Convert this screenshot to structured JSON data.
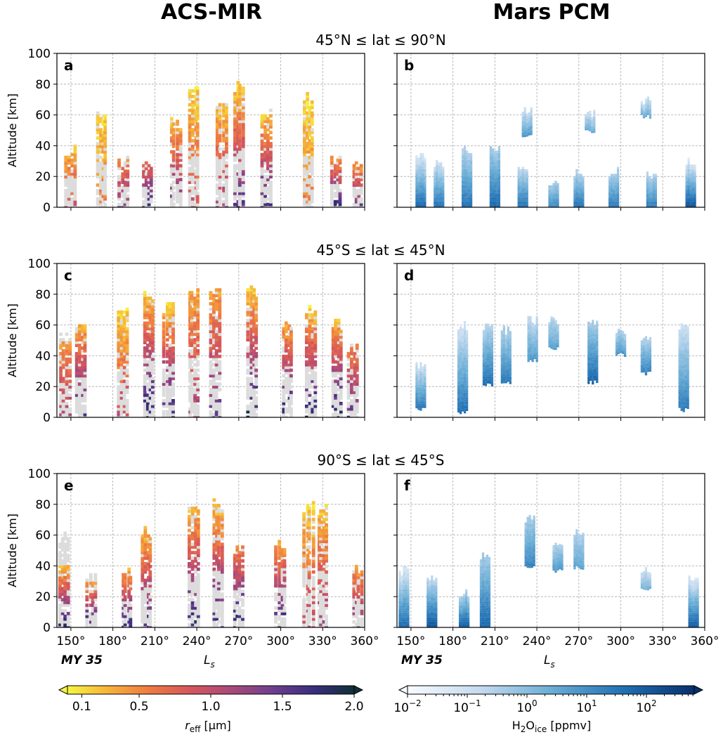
{
  "figure": {
    "left_title": "ACS-MIR",
    "right_title": "Mars PCM",
    "year_label": "MY 35",
    "xlabel": "L",
    "xlabel_sub": "s"
  },
  "rows": [
    {
      "title": "45°N ≤ lat ≤ 90°N",
      "left_label": "a",
      "right_label": "b"
    },
    {
      "title": "45°S ≤ lat ≤ 45°N",
      "left_label": "c",
      "right_label": "d"
    },
    {
      "title": "90°S ≤ lat ≤ 45°S",
      "left_label": "e",
      "right_label": "f"
    }
  ],
  "colorbars": {
    "left": {
      "label": "r",
      "label_sub": "eff",
      "label_unit": " [μm]",
      "ticks": [
        "0.1",
        "0.5",
        "1.0",
        "1.5",
        "2.0"
      ],
      "range": [
        0,
        2
      ],
      "colors": [
        "#f5f541",
        "#f6b23a",
        "#ee7a42",
        "#d5565d",
        "#a94a7a",
        "#6f3f8e",
        "#3b2d7e",
        "#102f38"
      ]
    },
    "right": {
      "label": "H",
      "label_sub1": "2",
      "label_mid": "O",
      "label_sub2": "ice",
      "label_unit": " [ppmv]",
      "tick_bases": [
        "10",
        "10",
        "10",
        "10",
        "10"
      ],
      "tick_exps": [
        "−2",
        "−1",
        "0",
        "1",
        "2"
      ],
      "range_log10": [
        -2,
        2.8
      ],
      "colors": [
        "#f7fbff",
        "#c6dbef",
        "#6baed6",
        "#2171b5",
        "#08306b"
      ]
    }
  },
  "chart_data": [
    {
      "type": "heatmap",
      "panel": "a",
      "title": "45°N ≤ lat ≤ 90°N",
      "ylabel": "Altitude [km]",
      "xlim": [
        140,
        360
      ],
      "ylim": [
        0,
        100
      ],
      "xticks": [
        "150°",
        "180°",
        "210°",
        "240°",
        "270°",
        "300°",
        "330°",
        "360°"
      ],
      "yticks": [
        "0",
        "20",
        "40",
        "60",
        "80",
        "100"
      ],
      "grid": true,
      "color_var": "r_eff [μm]",
      "columns": [
        {
          "ls": 150,
          "bottom": 0,
          "top": 40,
          "color_top": 42,
          "reff_top": 0.2,
          "reff_bottom": 0.9
        },
        {
          "ls": 172,
          "bottom": 0,
          "top": 66,
          "color_top": 66,
          "reff_top": 0.1,
          "reff_bottom": 0.6
        },
        {
          "ls": 188,
          "bottom": 0,
          "top": 36,
          "color_top": 32,
          "reff_top": 0.4,
          "reff_bottom": 1.4
        },
        {
          "ls": 205,
          "bottom": 0,
          "top": 34,
          "color_top": 32,
          "reff_top": 0.5,
          "reff_bottom": 1.9
        },
        {
          "ls": 225,
          "bottom": 0,
          "top": 58,
          "color_top": 58,
          "reff_top": 0.2,
          "reff_bottom": 1.5
        },
        {
          "ls": 238,
          "bottom": 0,
          "top": 80,
          "color_top": 80,
          "reff_top": 0.1,
          "reff_bottom": 0.9
        },
        {
          "ls": 258,
          "bottom": 0,
          "top": 74,
          "color_top": 74,
          "reff_top": 0.1,
          "reff_bottom": 1.2
        },
        {
          "ls": 270,
          "bottom": 0,
          "top": 82,
          "color_top": 82,
          "reff_top": 0.1,
          "reff_bottom": 1.6
        },
        {
          "ls": 290,
          "bottom": 0,
          "top": 64,
          "color_top": 60,
          "reff_top": 0.2,
          "reff_bottom": 1.7
        },
        {
          "ls": 320,
          "bottom": 0,
          "top": 74,
          "color_top": 74,
          "reff_top": 0.1,
          "reff_bottom": 0.6
        },
        {
          "ls": 340,
          "bottom": 0,
          "top": 34,
          "color_top": 34,
          "reff_top": 0.3,
          "reff_bottom": 1.8
        },
        {
          "ls": 355,
          "bottom": 0,
          "top": 32,
          "color_top": 32,
          "reff_top": 0.2,
          "reff_bottom": 1.5
        }
      ]
    },
    {
      "type": "heatmap",
      "panel": "b",
      "title": "45°N ≤ lat ≤ 90°N",
      "xlim": [
        140,
        360
      ],
      "ylim": [
        0,
        100
      ],
      "xticks": [
        "150°",
        "180°",
        "210°",
        "240°",
        "270°",
        "300°",
        "330°",
        "360°"
      ],
      "grid": true,
      "color_var": "H2O_ice [ppmv]",
      "columns": [
        {
          "ls": 157,
          "bottom": 0,
          "top": 36,
          "log_top": -1.2,
          "log_bottom": 1.8
        },
        {
          "ls": 170,
          "bottom": 0,
          "top": 32,
          "log_top": -1.0,
          "log_bottom": 1.6
        },
        {
          "ls": 190,
          "bottom": 0,
          "top": 40,
          "log_top": -0.6,
          "log_bottom": 1.6
        },
        {
          "ls": 210,
          "bottom": 0,
          "top": 40,
          "log_top": -0.4,
          "log_bottom": 1.8
        },
        {
          "ls": 230,
          "bottom": 0,
          "top": 30,
          "log_top": -0.8,
          "log_bottom": 1.6
        },
        {
          "ls": 233,
          "bottom": 46,
          "top": 66,
          "log_top": -1.0,
          "log_bottom": 0.8
        },
        {
          "ls": 252,
          "bottom": 0,
          "top": 18,
          "log_top": -0.4,
          "log_bottom": 1.2
        },
        {
          "ls": 270,
          "bottom": 0,
          "top": 26,
          "log_top": -0.6,
          "log_bottom": 1.6
        },
        {
          "ls": 278,
          "bottom": 48,
          "top": 64,
          "log_top": -1.0,
          "log_bottom": 0.4
        },
        {
          "ls": 295,
          "bottom": 0,
          "top": 26,
          "log_top": -0.5,
          "log_bottom": 1.4
        },
        {
          "ls": 318,
          "bottom": 58,
          "top": 72,
          "log_top": -1.0,
          "log_bottom": 0.4
        },
        {
          "ls": 322,
          "bottom": 0,
          "top": 24,
          "log_top": -0.6,
          "log_bottom": 1.4
        },
        {
          "ls": 350,
          "bottom": 0,
          "top": 32,
          "log_top": -1.2,
          "log_bottom": 2.2
        }
      ]
    },
    {
      "type": "heatmap",
      "panel": "c",
      "title": "45°S ≤ lat ≤ 45°N",
      "ylabel": "Altitude [km]",
      "xlim": [
        140,
        360
      ],
      "ylim": [
        0,
        100
      ],
      "xticks": [
        "150°",
        "180°",
        "210°",
        "240°",
        "270°",
        "300°",
        "330°",
        "360°"
      ],
      "yticks": [
        "0",
        "20",
        "40",
        "60",
        "80",
        "100"
      ],
      "grid": true,
      "color_var": "r_eff [μm]",
      "columns": [
        {
          "ls": 146,
          "bottom": 0,
          "top": 56,
          "color_top": 50,
          "reff_top": 0.4,
          "reff_bottom": 1.2
        },
        {
          "ls": 157,
          "bottom": 0,
          "top": 64,
          "color_top": 60,
          "reff_top": 0.3,
          "reff_bottom": 1.8
        },
        {
          "ls": 187,
          "bottom": 0,
          "top": 72,
          "color_top": 72,
          "reff_top": 0.1,
          "reff_bottom": 1.0
        },
        {
          "ls": 206,
          "bottom": 0,
          "top": 84,
          "color_top": 84,
          "reff_top": 0.1,
          "reff_bottom": 1.9
        },
        {
          "ls": 220,
          "bottom": 0,
          "top": 76,
          "color_top": 76,
          "reff_top": 0.1,
          "reff_bottom": 1.8
        },
        {
          "ls": 238,
          "bottom": 0,
          "top": 86,
          "color_top": 86,
          "reff_top": 0.3,
          "reff_bottom": 1.2
        },
        {
          "ls": 253,
          "bottom": 0,
          "top": 86,
          "color_top": 86,
          "reff_top": 0.3,
          "reff_bottom": 1.5
        },
        {
          "ls": 280,
          "bottom": 0,
          "top": 86,
          "color_top": 86,
          "reff_top": 0.1,
          "reff_bottom": 1.9
        },
        {
          "ls": 305,
          "bottom": 0,
          "top": 66,
          "color_top": 66,
          "reff_top": 0.2,
          "reff_bottom": 1.9
        },
        {
          "ls": 322,
          "bottom": 0,
          "top": 74,
          "color_top": 74,
          "reff_top": 0.1,
          "reff_bottom": 1.9
        },
        {
          "ls": 340,
          "bottom": 0,
          "top": 66,
          "color_top": 66,
          "reff_top": 0.2,
          "reff_bottom": 1.9
        },
        {
          "ls": 352,
          "bottom": 0,
          "top": 50,
          "color_top": 50,
          "reff_top": 0.4,
          "reff_bottom": 1.6
        }
      ]
    },
    {
      "type": "heatmap",
      "panel": "d",
      "title": "45°S ≤ lat ≤ 45°N",
      "xlim": [
        140,
        360
      ],
      "ylim": [
        0,
        100
      ],
      "xticks": [
        "150°",
        "180°",
        "210°",
        "240°",
        "270°",
        "300°",
        "330°",
        "360°"
      ],
      "grid": true,
      "color_var": "H2O_ice [ppmv]",
      "columns": [
        {
          "ls": 157,
          "bottom": 4,
          "top": 36,
          "log_top": -1.0,
          "log_bottom": 1.4
        },
        {
          "ls": 187,
          "bottom": 2,
          "top": 62,
          "log_top": -1.0,
          "log_bottom": 1.6
        },
        {
          "ls": 205,
          "bottom": 20,
          "top": 62,
          "log_top": -0.6,
          "log_bottom": 1.6
        },
        {
          "ls": 218,
          "bottom": 22,
          "top": 60,
          "log_top": -0.5,
          "log_bottom": 1.4
        },
        {
          "ls": 237,
          "bottom": 36,
          "top": 66,
          "log_top": -0.8,
          "log_bottom": 0.8
        },
        {
          "ls": 252,
          "bottom": 44,
          "top": 66,
          "log_top": -0.6,
          "log_bottom": 0.6
        },
        {
          "ls": 280,
          "bottom": 22,
          "top": 66,
          "log_top": -0.4,
          "log_bottom": 1.8
        },
        {
          "ls": 300,
          "bottom": 40,
          "top": 58,
          "log_top": -0.6,
          "log_bottom": 0.8
        },
        {
          "ls": 318,
          "bottom": 28,
          "top": 54,
          "log_top": -0.6,
          "log_bottom": 1.2
        },
        {
          "ls": 345,
          "bottom": 4,
          "top": 62,
          "log_top": -1.0,
          "log_bottom": 1.4
        }
      ]
    },
    {
      "type": "heatmap",
      "panel": "e",
      "title": "90°S ≤ lat ≤ 45°S",
      "ylabel": "Altitude [km]",
      "xlim": [
        140,
        360
      ],
      "ylim": [
        0,
        100
      ],
      "xticks": [
        "150°",
        "180°",
        "210°",
        "240°",
        "270°",
        "300°",
        "330°",
        "360°"
      ],
      "yticks": [
        "0",
        "20",
        "40",
        "60",
        "80",
        "100"
      ],
      "grid": true,
      "color_var": "r_eff [μm]",
      "columns": [
        {
          "ls": 145,
          "bottom": 0,
          "top": 62,
          "color_top": 40,
          "reff_top": 0.2,
          "reff_bottom": 1.9
        },
        {
          "ls": 165,
          "bottom": 0,
          "top": 36,
          "color_top": 30,
          "reff_top": 0.3,
          "reff_bottom": 1.9
        },
        {
          "ls": 190,
          "bottom": 0,
          "top": 42,
          "color_top": 38,
          "reff_top": 0.3,
          "reff_bottom": 1.8
        },
        {
          "ls": 204,
          "bottom": 0,
          "top": 68,
          "color_top": 66,
          "reff_top": 0.2,
          "reff_bottom": 1.6
        },
        {
          "ls": 238,
          "bottom": 0,
          "top": 80,
          "color_top": 80,
          "reff_top": 0.2,
          "reff_bottom": 1.8
        },
        {
          "ls": 255,
          "bottom": 0,
          "top": 84,
          "color_top": 84,
          "reff_top": 0.1,
          "reff_bottom": 1.8
        },
        {
          "ls": 270,
          "bottom": 0,
          "top": 54,
          "color_top": 54,
          "reff_top": 0.5,
          "reff_bottom": 1.9
        },
        {
          "ls": 300,
          "bottom": 0,
          "top": 58,
          "color_top": 58,
          "reff_top": 0.3,
          "reff_bottom": 1.8
        },
        {
          "ls": 320,
          "bottom": 0,
          "top": 84,
          "color_top": 84,
          "reff_top": 0.1,
          "reff_bottom": 1.0
        },
        {
          "ls": 330,
          "bottom": 0,
          "top": 80,
          "color_top": 80,
          "reff_top": 0.2,
          "reff_bottom": 1.2
        },
        {
          "ls": 355,
          "bottom": 0,
          "top": 40,
          "color_top": 40,
          "reff_top": 0.4,
          "reff_bottom": 1.4
        }
      ]
    },
    {
      "type": "heatmap",
      "panel": "f",
      "title": "90°S ≤ lat ≤ 45°S",
      "xlim": [
        140,
        360
      ],
      "ylim": [
        0,
        100
      ],
      "xticks": [
        "150°",
        "180°",
        "210°",
        "240°",
        "270°",
        "300°",
        "330°",
        "360°"
      ],
      "grid": true,
      "color_var": "H2O_ice [ppmv]",
      "columns": [
        {
          "ls": 145,
          "bottom": 0,
          "top": 40,
          "log_top": -1.2,
          "log_bottom": 1.8
        },
        {
          "ls": 165,
          "bottom": 0,
          "top": 36,
          "log_top": -0.8,
          "log_bottom": 2.2
        },
        {
          "ls": 188,
          "bottom": 0,
          "top": 26,
          "log_top": -0.6,
          "log_bottom": 2.0
        },
        {
          "ls": 203,
          "bottom": 0,
          "top": 50,
          "log_top": -0.4,
          "log_bottom": 1.8
        },
        {
          "ls": 235,
          "bottom": 38,
          "top": 74,
          "log_top": -0.4,
          "log_bottom": 1.2
        },
        {
          "ls": 255,
          "bottom": 36,
          "top": 58,
          "log_top": -0.6,
          "log_bottom": 0.8
        },
        {
          "ls": 270,
          "bottom": 38,
          "top": 66,
          "log_top": -0.6,
          "log_bottom": 0.6
        },
        {
          "ls": 318,
          "bottom": 24,
          "top": 40,
          "log_top": -1.0,
          "log_bottom": 0.2
        },
        {
          "ls": 352,
          "bottom": 0,
          "top": 36,
          "log_top": -1.2,
          "log_bottom": 2.0
        }
      ]
    }
  ]
}
